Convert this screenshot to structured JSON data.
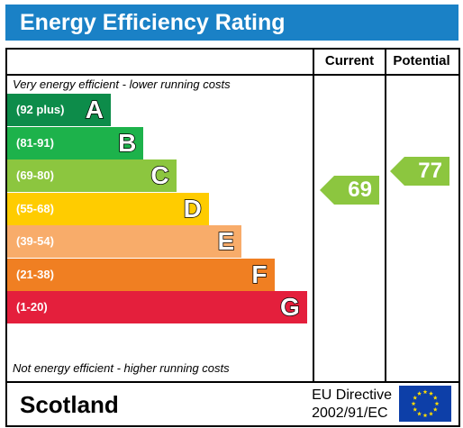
{
  "header": {
    "title": "Energy Efficiency Rating"
  },
  "columns": {
    "current": "Current",
    "potential": "Potential"
  },
  "captions": {
    "top": "Very energy efficient - lower running costs",
    "bottom": "Not energy efficient - higher running costs"
  },
  "chart_data": {
    "type": "bar",
    "title": "Energy Efficiency Rating",
    "categories": [
      "A",
      "B",
      "C",
      "D",
      "E",
      "F",
      "G"
    ],
    "bands": [
      {
        "letter": "A",
        "range": "(92 plus)",
        "color": "#0d8c4a"
      },
      {
        "letter": "B",
        "range": "(81-91)",
        "color": "#1db24b"
      },
      {
        "letter": "C",
        "range": "(69-80)",
        "color": "#8cc63f"
      },
      {
        "letter": "D",
        "range": "(55-68)",
        "color": "#ffcc00"
      },
      {
        "letter": "E",
        "range": "(39-54)",
        "color": "#f8ac6a"
      },
      {
        "letter": "F",
        "range": "(21-38)",
        "color": "#f07f22"
      },
      {
        "letter": "G",
        "range": "(1-20)",
        "color": "#e41f3c"
      }
    ],
    "current": {
      "value": "69",
      "band": "C",
      "color": "#8cc63f"
    },
    "potential": {
      "value": "77",
      "band": "C",
      "color": "#8cc63f"
    }
  },
  "footer": {
    "region": "Scotland",
    "directive_line1": "EU Directive",
    "directive_line2": "2002/91/EC"
  },
  "icons": {
    "flag": "eu-flag-icon"
  }
}
